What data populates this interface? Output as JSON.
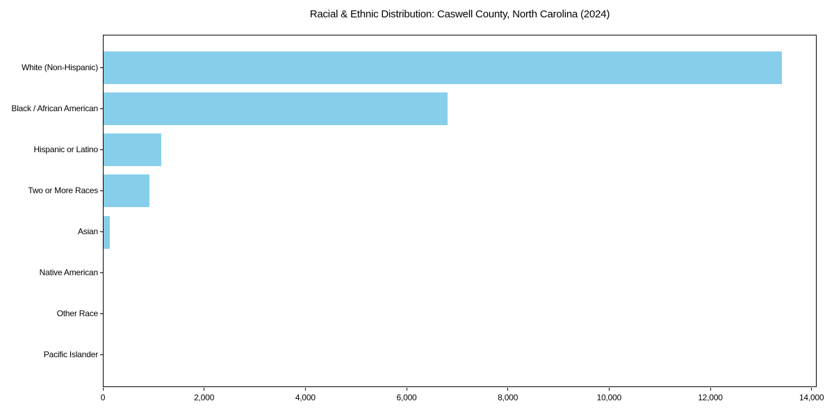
{
  "chart_data": {
    "type": "bar",
    "orientation": "horizontal",
    "title": "Racial & Ethnic Distribution: Caswell County, North Carolina (2024)",
    "categories": [
      "White (Non-Hispanic)",
      "Black / African American",
      "Hispanic or Latino",
      "Two or More Races",
      "Asian",
      "Native American",
      "Other Race",
      "Pacific Islander"
    ],
    "values": [
      13400,
      6800,
      1140,
      900,
      120,
      0,
      0,
      0
    ],
    "xlabel": "",
    "ylabel": "",
    "xlim": [
      0,
      14100
    ],
    "x_ticks": [
      0,
      2000,
      4000,
      6000,
      8000,
      10000,
      12000,
      14000
    ],
    "x_tick_labels": [
      "0",
      "2,000",
      "4,000",
      "6,000",
      "8,000",
      "10,000",
      "12,000",
      "14,000"
    ],
    "grid": false,
    "legend": null,
    "bar_color": "#87CEEB",
    "frame_color": "#000000",
    "background_color": "#ffffff"
  }
}
